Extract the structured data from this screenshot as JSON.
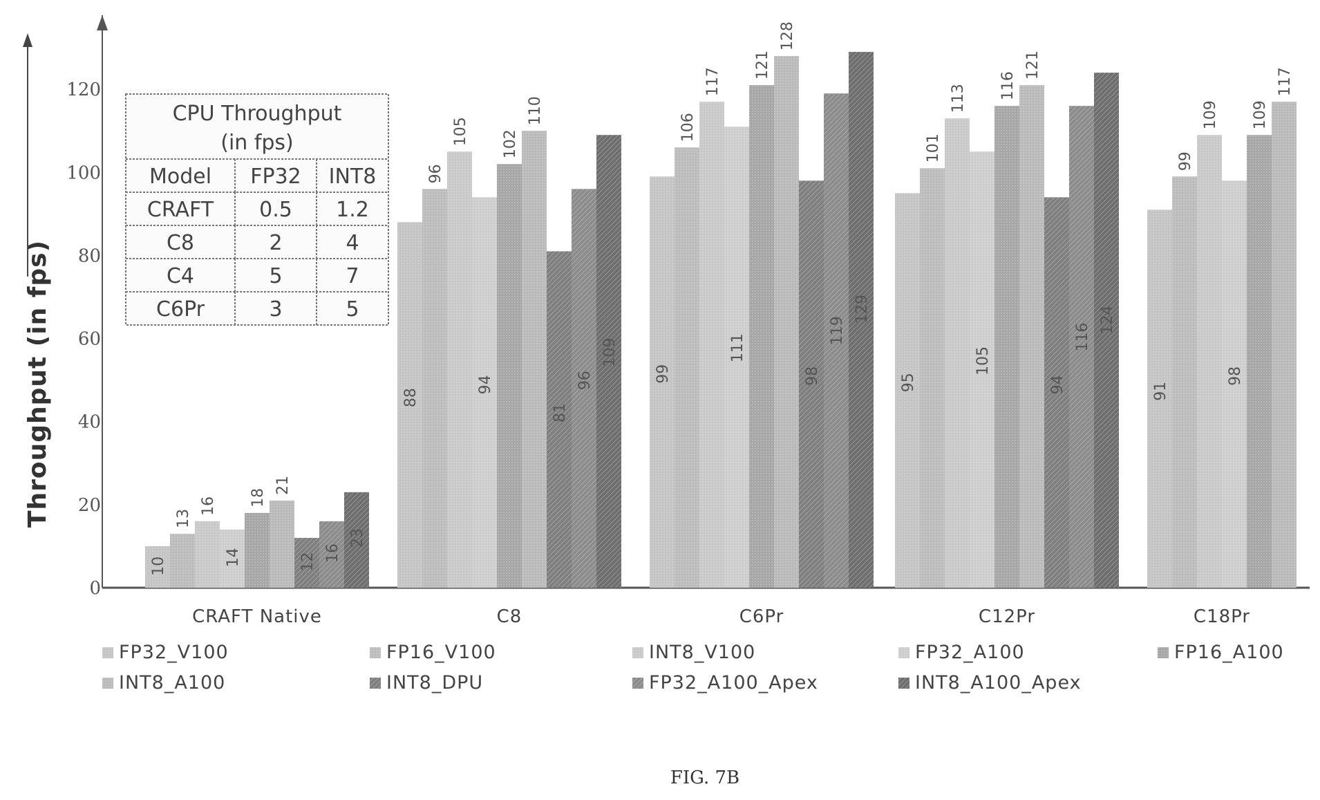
{
  "chart_data": {
    "type": "bar",
    "ylabel": "Throughput (in fps)",
    "xlabel": "",
    "ylim": [
      0,
      140
    ],
    "yticks": [
      0,
      20,
      40,
      60,
      80,
      100,
      120
    ],
    "grid": false,
    "legend_position": "bottom",
    "categories": [
      "CRAFT Native",
      "C8",
      "C6Pr",
      "C12Pr",
      "C18Pr"
    ],
    "series": [
      {
        "name": "FP32_V100",
        "color": "#c4c4c4",
        "values": [
          10,
          88,
          99,
          95,
          91
        ],
        "labels": [
          "10",
          "88",
          "99",
          "95",
          "91"
        ]
      },
      {
        "name": "FP16_V100",
        "color": "#bcbcbc",
        "values": [
          13,
          96,
          106,
          101,
          99
        ],
        "labels": [
          "13",
          "96",
          "106",
          "101",
          "99"
        ]
      },
      {
        "name": "INT8_V100",
        "color": "#c9c9c9",
        "values": [
          16,
          105,
          117,
          113,
          109
        ],
        "labels": [
          "16",
          "105",
          "117",
          "113",
          "109"
        ]
      },
      {
        "name": "FP32_A100",
        "color": "#cdcdcd",
        "values": [
          14,
          94,
          111,
          105,
          98
        ],
        "labels": [
          "14",
          "94",
          "111",
          "105",
          "98"
        ]
      },
      {
        "name": "FP16_A100",
        "color": "#a6a6a6",
        "values": [
          18,
          102,
          121,
          116,
          109
        ],
        "labels": [
          "18",
          "102",
          "121",
          "116",
          "109"
        ]
      },
      {
        "name": "INT8_A100",
        "color": "#bababa",
        "values": [
          21,
          110,
          128,
          121,
          117
        ],
        "labels": [
          "21",
          "110",
          "128",
          "121",
          "117"
        ]
      },
      {
        "name": "INT8_DPU",
        "color": "#7f7f7f",
        "values": [
          12,
          81,
          98,
          94,
          null
        ],
        "labels": [
          "12",
          "81",
          "98",
          "94",
          ""
        ]
      },
      {
        "name": "FP32_A100_Apex",
        "color": "#8c8c8c",
        "values": [
          16,
          96,
          119,
          116,
          null
        ],
        "labels": [
          "16",
          "96",
          "119",
          "116",
          ""
        ]
      },
      {
        "name": "INT8_A100_Apex",
        "color": "#6e6e6e",
        "values": [
          23,
          109,
          129,
          124,
          null
        ],
        "labels": [
          "23",
          "109",
          "129",
          "124",
          ""
        ]
      }
    ],
    "inset_table": {
      "title": [
        "CPU Throughput",
        "(in fps)"
      ],
      "headers": [
        "Model",
        "FP32",
        "INT8"
      ],
      "rows": [
        [
          "CRAFT",
          "0.5",
          "1.2"
        ],
        [
          "C8",
          "2",
          "4"
        ],
        [
          "C4",
          "5",
          "7"
        ],
        [
          "C6Pr",
          "3",
          "5"
        ]
      ]
    }
  },
  "figure": {
    "caption": "FIG. 7B"
  }
}
